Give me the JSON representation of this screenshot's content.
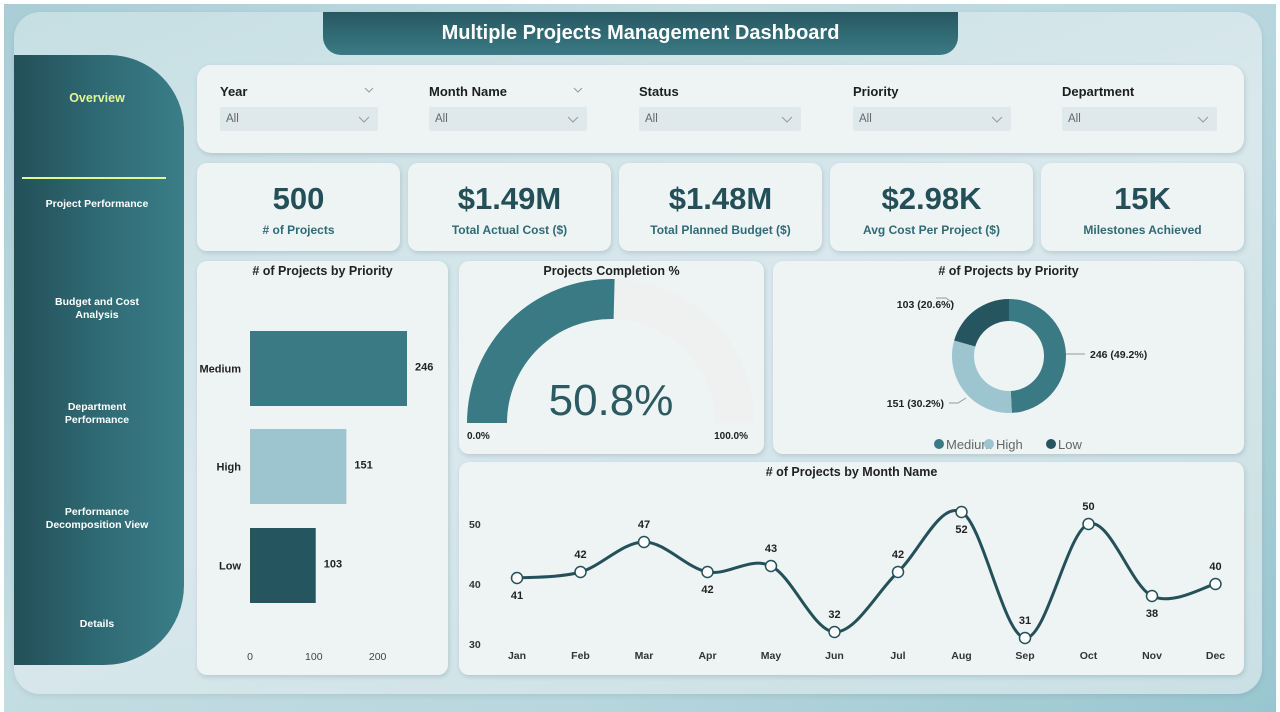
{
  "header": {
    "title": "Multiple Projects Management Dashboard"
  },
  "sidebar": {
    "items": [
      {
        "label": "Overview",
        "active": true
      },
      {
        "label": "Project Performance"
      },
      {
        "label": "Budget and Cost Analysis"
      },
      {
        "label": "Department Performance"
      },
      {
        "label": "Performance Decomposition View"
      },
      {
        "label": "Details"
      }
    ]
  },
  "filters": [
    {
      "label": "Year",
      "value": "All"
    },
    {
      "label": "Month Name",
      "value": "All"
    },
    {
      "label": "Status",
      "value": "All"
    },
    {
      "label": "Priority",
      "value": "All"
    },
    {
      "label": "Department",
      "value": "All"
    }
  ],
  "kpis": [
    {
      "value": "500",
      "label": "# of Projects"
    },
    {
      "value": "$1.49M",
      "label": "Total Actual Cost ($)"
    },
    {
      "value": "$1.48M",
      "label": "Total Planned Budget ($)"
    },
    {
      "value": "$2.98K",
      "label": "Avg Cost Per Project ($)"
    },
    {
      "value": "15K",
      "label": "Milestones Achieved"
    }
  ],
  "colors": {
    "medium": "#3a7a84",
    "high": "#9cc5cf",
    "low": "#255660",
    "line": "#245159",
    "gauge_empty": "#eff0f0"
  },
  "chart_data": [
    {
      "type": "bar",
      "orientation": "horizontal",
      "title": "# of Projects by Priority",
      "categories": [
        "Medium",
        "High",
        "Low"
      ],
      "values": [
        246,
        151,
        103
      ],
      "value_labels": [
        "246",
        "151",
        "103"
      ],
      "xticks": [
        "0",
        "100",
        "200"
      ],
      "xlim": [
        0,
        255
      ]
    },
    {
      "type": "gauge",
      "title": "Projects Completion %",
      "value": 50.8,
      "value_label": "50.8%",
      "min_label": "0.0%",
      "max_label": "100.0%",
      "range": [
        0,
        100
      ]
    },
    {
      "type": "pie",
      "donut": true,
      "title": "# of Projects by Priority",
      "categories": [
        "Medium",
        "High",
        "Low"
      ],
      "values": [
        246,
        151,
        103
      ],
      "labels": [
        "246 (49.2%)",
        "151 (30.2%)",
        "103 (20.6%)"
      ],
      "legend": [
        "Medium",
        "High",
        "Low"
      ],
      "legend_position": "bottom"
    },
    {
      "type": "line",
      "title": "# of Projects by Month Name",
      "categories": [
        "Jan",
        "Feb",
        "Mar",
        "Apr",
        "May",
        "Jun",
        "Jul",
        "Aug",
        "Sep",
        "Oct",
        "Nov",
        "Dec"
      ],
      "values": [
        41,
        42,
        47,
        42,
        43,
        32,
        42,
        52,
        31,
        50,
        38,
        40
      ],
      "yticks": [
        "30",
        "40",
        "50"
      ],
      "ylim": [
        30,
        50
      ]
    }
  ]
}
